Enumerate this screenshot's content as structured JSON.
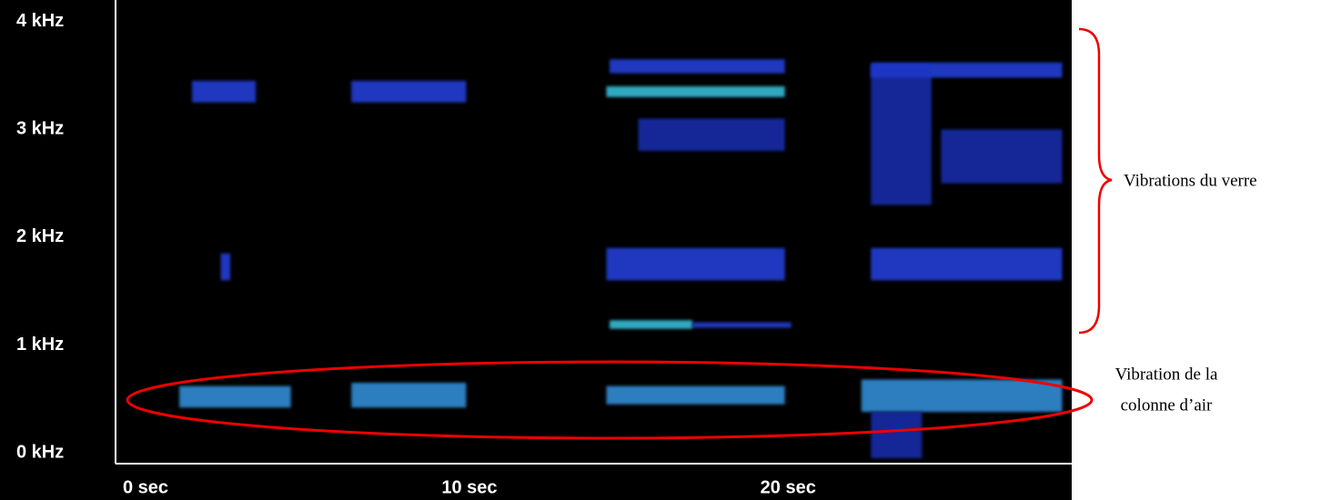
{
  "chart_data": {
    "type": "spectrogram",
    "xlim": [
      -0.4,
      29.6
    ],
    "ylim": [
      -0.1,
      4.2
    ],
    "xticks": [
      {
        "value": 0,
        "label": "0  sec"
      },
      {
        "value": 10,
        "label": "10  sec"
      },
      {
        "value": 20,
        "label": "20  sec"
      }
    ],
    "yticks": [
      {
        "value": 0,
        "label": "0 kHz"
      },
      {
        "value": 1,
        "label": "1 kHz"
      },
      {
        "value": 2,
        "label": "2 kHz"
      },
      {
        "value": 3,
        "label": "3 kHz"
      },
      {
        "value": 4,
        "label": "4 kHz"
      }
    ],
    "bands": [
      {
        "t": [
          1.6,
          5.1
        ],
        "f": [
          0.42,
          0.62
        ],
        "color": "#3aa8ff"
      },
      {
        "t": [
          7.0,
          10.6
        ],
        "f": [
          0.42,
          0.65
        ],
        "color": "#3aa8ff"
      },
      {
        "t": [
          15.0,
          20.6
        ],
        "f": [
          0.45,
          0.62
        ],
        "color": "#3aa8ff"
      },
      {
        "t": [
          23.0,
          29.3
        ],
        "f": [
          0.38,
          0.68
        ],
        "color": "#3aa8ff"
      },
      {
        "t": [
          2.0,
          4.0
        ],
        "f": [
          3.25,
          3.45
        ],
        "color": "#2a4cff"
      },
      {
        "t": [
          7.0,
          10.6
        ],
        "f": [
          3.25,
          3.45
        ],
        "color": "#2a4cff"
      },
      {
        "t": [
          15.0,
          20.6
        ],
        "f": [
          3.3,
          3.4
        ],
        "color": "#40e0ff"
      },
      {
        "t": [
          15.1,
          20.6
        ],
        "f": [
          3.52,
          3.65
        ],
        "color": "#2a4cff"
      },
      {
        "t": [
          23.3,
          29.3
        ],
        "f": [
          3.48,
          3.62
        ],
        "color": "#2a4cff"
      },
      {
        "t": [
          2.9,
          3.2
        ],
        "f": [
          1.6,
          1.85
        ],
        "color": "#2a4cff"
      },
      {
        "t": [
          15.0,
          20.6
        ],
        "f": [
          1.6,
          1.9
        ],
        "color": "#2a4cff"
      },
      {
        "t": [
          23.3,
          29.3
        ],
        "f": [
          1.6,
          1.9
        ],
        "color": "#2a4cff"
      },
      {
        "t": [
          15.1,
          17.7
        ],
        "f": [
          1.15,
          1.23
        ],
        "color": "#40e0ff"
      },
      {
        "t": [
          17.7,
          20.8
        ],
        "f": [
          1.16,
          1.21
        ],
        "color": "#2a4cff"
      },
      {
        "t": [
          16.0,
          20.6
        ],
        "f": [
          2.8,
          3.1
        ],
        "color": "#1e36c8"
      },
      {
        "t": [
          23.3,
          25.2
        ],
        "f": [
          2.3,
          3.6
        ],
        "color": "#1e36c8"
      },
      {
        "t": [
          25.5,
          29.3
        ],
        "f": [
          2.5,
          3.0
        ],
        "color": "#1e36c8"
      },
      {
        "t": [
          23.3,
          24.9
        ],
        "f": [
          -0.05,
          0.38
        ],
        "color": "#1e36c8"
      }
    ],
    "annotations": [
      "Vibrations du verre",
      "Vibration de la",
      "colonne d’air"
    ]
  }
}
